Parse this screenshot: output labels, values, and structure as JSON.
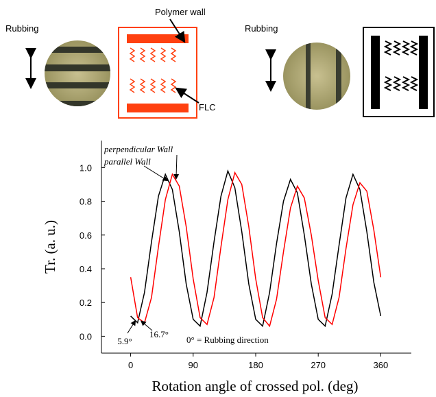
{
  "figure": {
    "left_rubbing": "Rubbing",
    "polymer_wall": "Polymer wall",
    "flc": "FLC",
    "right_rubbing": "Rubbing"
  },
  "chart_data": {
    "type": "line",
    "x_label": "Rotation angle of crossed pol. (deg)",
    "y_label": "Tr. (a. u.)",
    "annotations": [
      "perpendicular Wall",
      "parallel Wall",
      "5.9°",
      "16.7°",
      "0° = Rubbing direction"
    ],
    "x": [
      0,
      10,
      20,
      30,
      40,
      50,
      60,
      70,
      80,
      90,
      100,
      110,
      120,
      130,
      140,
      150,
      160,
      170,
      180,
      190,
      200,
      210,
      220,
      230,
      240,
      250,
      260,
      270,
      280,
      290,
      300,
      310,
      320,
      330,
      340,
      350,
      360
    ],
    "series": [
      {
        "color": "#000000",
        "values": [
          0.12,
          0.08,
          0.26,
          0.56,
          0.83,
          0.96,
          0.87,
          0.62,
          0.31,
          0.1,
          0.06,
          0.26,
          0.56,
          0.83,
          0.98,
          0.88,
          0.62,
          0.31,
          0.1,
          0.06,
          0.26,
          0.55,
          0.8,
          0.93,
          0.85,
          0.6,
          0.31,
          0.1,
          0.06,
          0.25,
          0.54,
          0.82,
          0.96,
          0.87,
          0.62,
          0.32,
          0.12
        ]
      },
      {
        "color": "#ff0000",
        "values": [
          0.35,
          0.11,
          0.08,
          0.23,
          0.53,
          0.81,
          0.96,
          0.89,
          0.65,
          0.34,
          0.11,
          0.07,
          0.23,
          0.53,
          0.81,
          0.97,
          0.9,
          0.65,
          0.34,
          0.11,
          0.06,
          0.22,
          0.5,
          0.76,
          0.89,
          0.82,
          0.6,
          0.33,
          0.11,
          0.07,
          0.23,
          0.52,
          0.78,
          0.91,
          0.86,
          0.63,
          0.35
        ]
      }
    ],
    "xlim": [
      -42,
      404
    ],
    "ylim": [
      -0.1,
      1.16
    ],
    "xticks": [
      0,
      90,
      180,
      270,
      360
    ],
    "yticks": [
      {
        "value": 0,
        "label": "0.0"
      },
      {
        "value": 0.2,
        "label": "0.2"
      },
      {
        "value": 0.4,
        "label": "0.4"
      },
      {
        "value": 0.6,
        "label": "0.6"
      },
      {
        "value": 0.8,
        "label": "0.8"
      },
      {
        "value": 1,
        "label": "1.0"
      }
    ]
  }
}
